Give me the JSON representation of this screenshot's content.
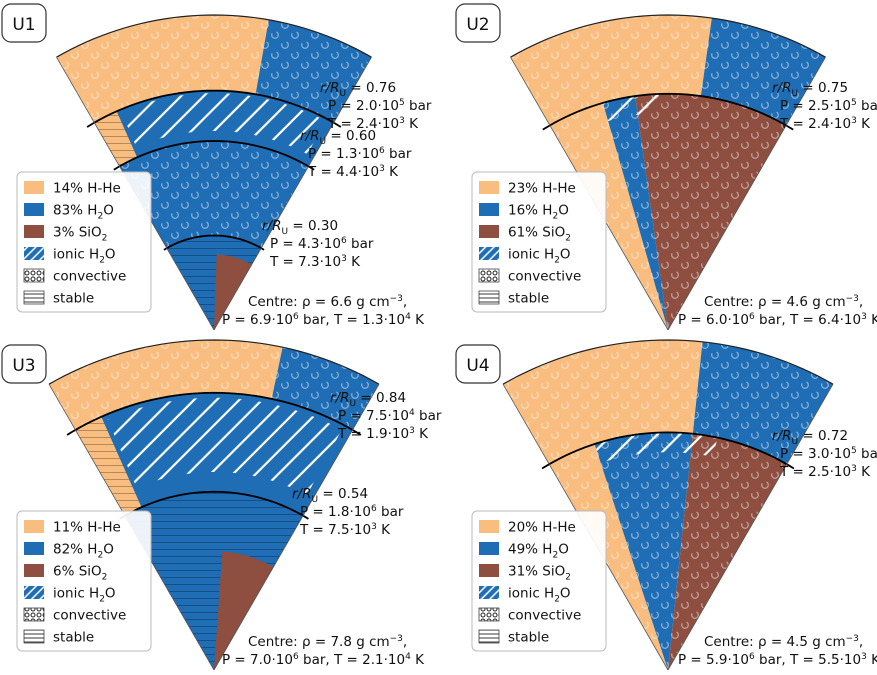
{
  "figure": {
    "colors": {
      "hhe": "#F9BE7F",
      "water": "#1E6DB5",
      "rock": "#8E4E40",
      "ionic_stripe": "#ffffff",
      "boundary": "#000000"
    },
    "legend_titles": {
      "ionic": "ionic H",
      "convective": "convective",
      "stable": "stable"
    },
    "panels": [
      {
        "label": "U1",
        "legend": {
          "hhe": "14%",
          "water": "83%",
          "rock": "3%"
        },
        "boundaries": [
          {
            "r_line1": "r/R",
            "r_val": "= 0.76",
            "p_pre": "P = 2.0·10",
            "p_exp": "5",
            "p_unit": " bar",
            "t_pre": "T = 2.4·10",
            "t_exp": "3",
            "t_unit": " K"
          },
          {
            "r_line1": "r/R",
            "r_val": "= 0.60",
            "p_pre": "P = 1.3·10",
            "p_exp": "6",
            "p_unit": " bar",
            "t_pre": "T = 4.4·10",
            "t_exp": "3",
            "t_unit": " K"
          },
          {
            "r_line1": "r/R",
            "r_val": "= 0.30",
            "p_pre": "P = 4.3·10",
            "p_exp": "6",
            "p_unit": " bar",
            "t_pre": "T = 7.3·10",
            "t_exp": "3",
            "t_unit": " K"
          }
        ],
        "centre": {
          "line1_pre": "Centre: ρ = 6.6 g cm",
          "line1_exp": "−3",
          "line1_post": ",",
          "line2_pre": "P = 6.9·10",
          "line2_exp": "6",
          "line2_mid": " bar, T = 1.3·10",
          "line2_exp2": "4",
          "line2_post": " K"
        }
      },
      {
        "label": "U2",
        "legend": {
          "hhe": "23%",
          "water": "16%",
          "rock": "61%"
        },
        "boundaries": [
          {
            "r_line1": "r/R",
            "r_val": "= 0.75",
            "p_pre": "P = 2.5·10",
            "p_exp": "5",
            "p_unit": " bar",
            "t_pre": "T = 2.4·10",
            "t_exp": "3",
            "t_unit": " K"
          }
        ],
        "centre": {
          "line1_pre": "Centre: ρ = 4.6 g cm",
          "line1_exp": "−3",
          "line1_post": ",",
          "line2_pre": "P = 6.0·10",
          "line2_exp": "6",
          "line2_mid": " bar, T = 6.4·10",
          "line2_exp2": "3",
          "line2_post": " K"
        }
      },
      {
        "label": "U3",
        "legend": {
          "hhe": "11%",
          "water": "82%",
          "rock": "6%"
        },
        "boundaries": [
          {
            "r_line1": "r/R",
            "r_val": "= 0.84",
            "p_pre": "P = 7.5·10",
            "p_exp": "4",
            "p_unit": " bar",
            "t_pre": "T = 1.9·10",
            "t_exp": "3",
            "t_unit": " K"
          },
          {
            "r_line1": "r/R",
            "r_val": "= 0.54",
            "p_pre": "P = 1.8·10",
            "p_exp": "6",
            "p_unit": " bar",
            "t_pre": "T = 7.5·10",
            "t_exp": "3",
            "t_unit": " K"
          }
        ],
        "centre": {
          "line1_pre": "Centre: ρ = 7.8 g cm",
          "line1_exp": "−3",
          "line1_post": ",",
          "line2_pre": "P = 7.0·10",
          "line2_exp": "6",
          "line2_mid": " bar, T = 2.1·10",
          "line2_exp2": "4",
          "line2_post": " K"
        }
      },
      {
        "label": "U4",
        "legend": {
          "hhe": "20%",
          "water": "49%",
          "rock": "31%"
        },
        "boundaries": [
          {
            "r_line1": "r/R",
            "r_val": "= 0.72",
            "p_pre": "P = 3.0·10",
            "p_exp": "5",
            "p_unit": " bar",
            "t_pre": "T = 2.5·10",
            "t_exp": "3",
            "t_unit": " K"
          }
        ],
        "centre": {
          "line1_pre": "Centre: ρ = 4.5 g cm",
          "line1_exp": "−3",
          "line1_post": ",",
          "line2_pre": "P = 5.9·10",
          "line2_exp": "6",
          "line2_mid": " bar, T = 5.5·10",
          "line2_exp2": "3",
          "line2_post": " K"
        }
      }
    ]
  }
}
